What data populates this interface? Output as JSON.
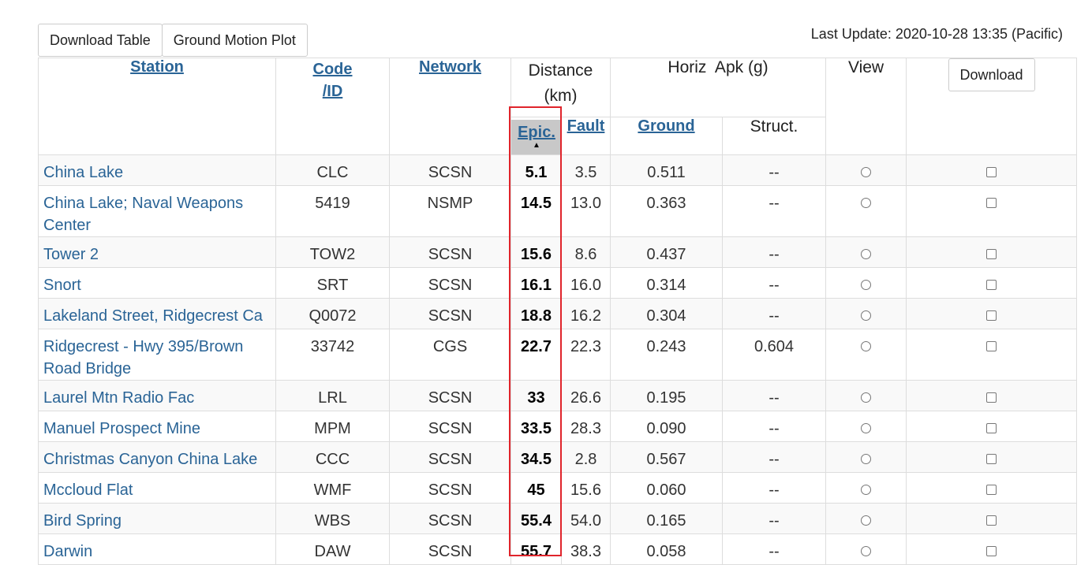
{
  "toolbar": {
    "download_table": "Download Table",
    "ground_motion_plot": "Ground Motion Plot"
  },
  "last_update": "Last Update: 2020-10-28 13:35 (Pacific)",
  "headers": {
    "station": "Station",
    "code": "Code",
    "id": "/ID",
    "network": "Network",
    "distance": "Distance",
    "km": "(km)",
    "horiz": "Horiz  Apk (g)",
    "view": "View",
    "download": "Download",
    "epic": "Epic.",
    "fault": "Fault",
    "ground": "Ground",
    "struct": "Struct."
  },
  "rows": [
    {
      "station": "China Lake",
      "code": "CLC",
      "network": "SCSN",
      "epic": "5.1",
      "fault": "3.5",
      "ground": "0.511",
      "struct": "--"
    },
    {
      "station": "China Lake; Naval Weapons Center",
      "code": "5419",
      "network": "NSMP",
      "epic": "14.5",
      "fault": "13.0",
      "ground": "0.363",
      "struct": "--"
    },
    {
      "station": "Tower 2",
      "code": "TOW2",
      "network": "SCSN",
      "epic": "15.6",
      "fault": "8.6",
      "ground": "0.437",
      "struct": "--"
    },
    {
      "station": "Snort",
      "code": "SRT",
      "network": "SCSN",
      "epic": "16.1",
      "fault": "16.0",
      "ground": "0.314",
      "struct": "--"
    },
    {
      "station": "Lakeland Street, Ridgecrest Ca",
      "code": "Q0072",
      "network": "SCSN",
      "epic": "18.8",
      "fault": "16.2",
      "ground": "0.304",
      "struct": "--"
    },
    {
      "station": "Ridgecrest - Hwy 395/Brown Road Bridge",
      "code": "33742",
      "network": "CGS",
      "epic": "22.7",
      "fault": "22.3",
      "ground": "0.243",
      "struct": "0.604"
    },
    {
      "station": "Laurel Mtn Radio Fac",
      "code": "LRL",
      "network": "SCSN",
      "epic": "33",
      "fault": "26.6",
      "ground": "0.195",
      "struct": "--"
    },
    {
      "station": "Manuel Prospect Mine",
      "code": "MPM",
      "network": "SCSN",
      "epic": "33.5",
      "fault": "28.3",
      "ground": "0.090",
      "struct": "--"
    },
    {
      "station": "Christmas Canyon China Lake",
      "code": "CCC",
      "network": "SCSN",
      "epic": "34.5",
      "fault": "2.8",
      "ground": "0.567",
      "struct": "--"
    },
    {
      "station": "Mccloud Flat",
      "code": "WMF",
      "network": "SCSN",
      "epic": "45",
      "fault": "15.6",
      "ground": "0.060",
      "struct": "--"
    },
    {
      "station": "Bird Spring",
      "code": "WBS",
      "network": "SCSN",
      "epic": "55.4",
      "fault": "54.0",
      "ground": "0.165",
      "struct": "--"
    },
    {
      "station": "Darwin",
      "code": "DAW",
      "network": "SCSN",
      "epic": "55.7",
      "fault": "38.3",
      "ground": "0.058",
      "struct": "--"
    }
  ],
  "accent": "#2a6496",
  "highlight_color": "#e0242b"
}
